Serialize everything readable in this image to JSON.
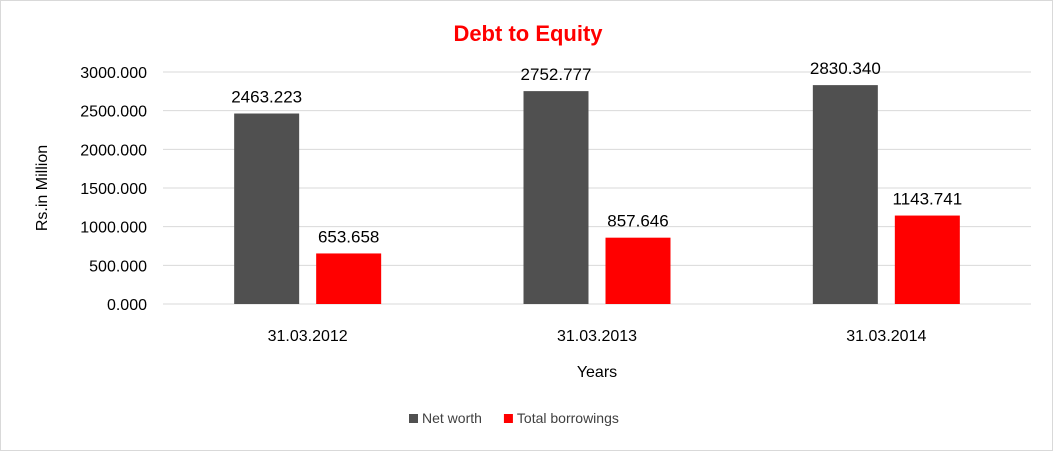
{
  "chart_data": {
    "type": "bar",
    "title": "Debt to Equity",
    "title_color": "#ff0000",
    "xlabel": "Years",
    "ylabel": "Rs.in Million",
    "categories": [
      "31.03.2012",
      "31.03.2013",
      "31.03.2014"
    ],
    "series": [
      {
        "name": "Net worth",
        "color": "#505050",
        "values": [
          2463.223,
          2752.777,
          2830.34
        ],
        "labels": [
          "2463.223",
          "2752.777",
          "2830.340"
        ]
      },
      {
        "name": "Total borrowings",
        "color": "#ff0000",
        "values": [
          653.658,
          857.646,
          1143.741
        ],
        "labels": [
          "653.658",
          "857.646",
          "1143.741"
        ]
      }
    ],
    "ylim": [
      0,
      3000
    ],
    "yticks": [
      0,
      500,
      1000,
      1500,
      2000,
      2500,
      3000
    ],
    "ytick_labels": [
      "0.000",
      "500.000",
      "1000.000",
      "1500.000",
      "2000.000",
      "2500.000",
      "3000.000"
    ],
    "grid": true,
    "legend": "bottom"
  }
}
